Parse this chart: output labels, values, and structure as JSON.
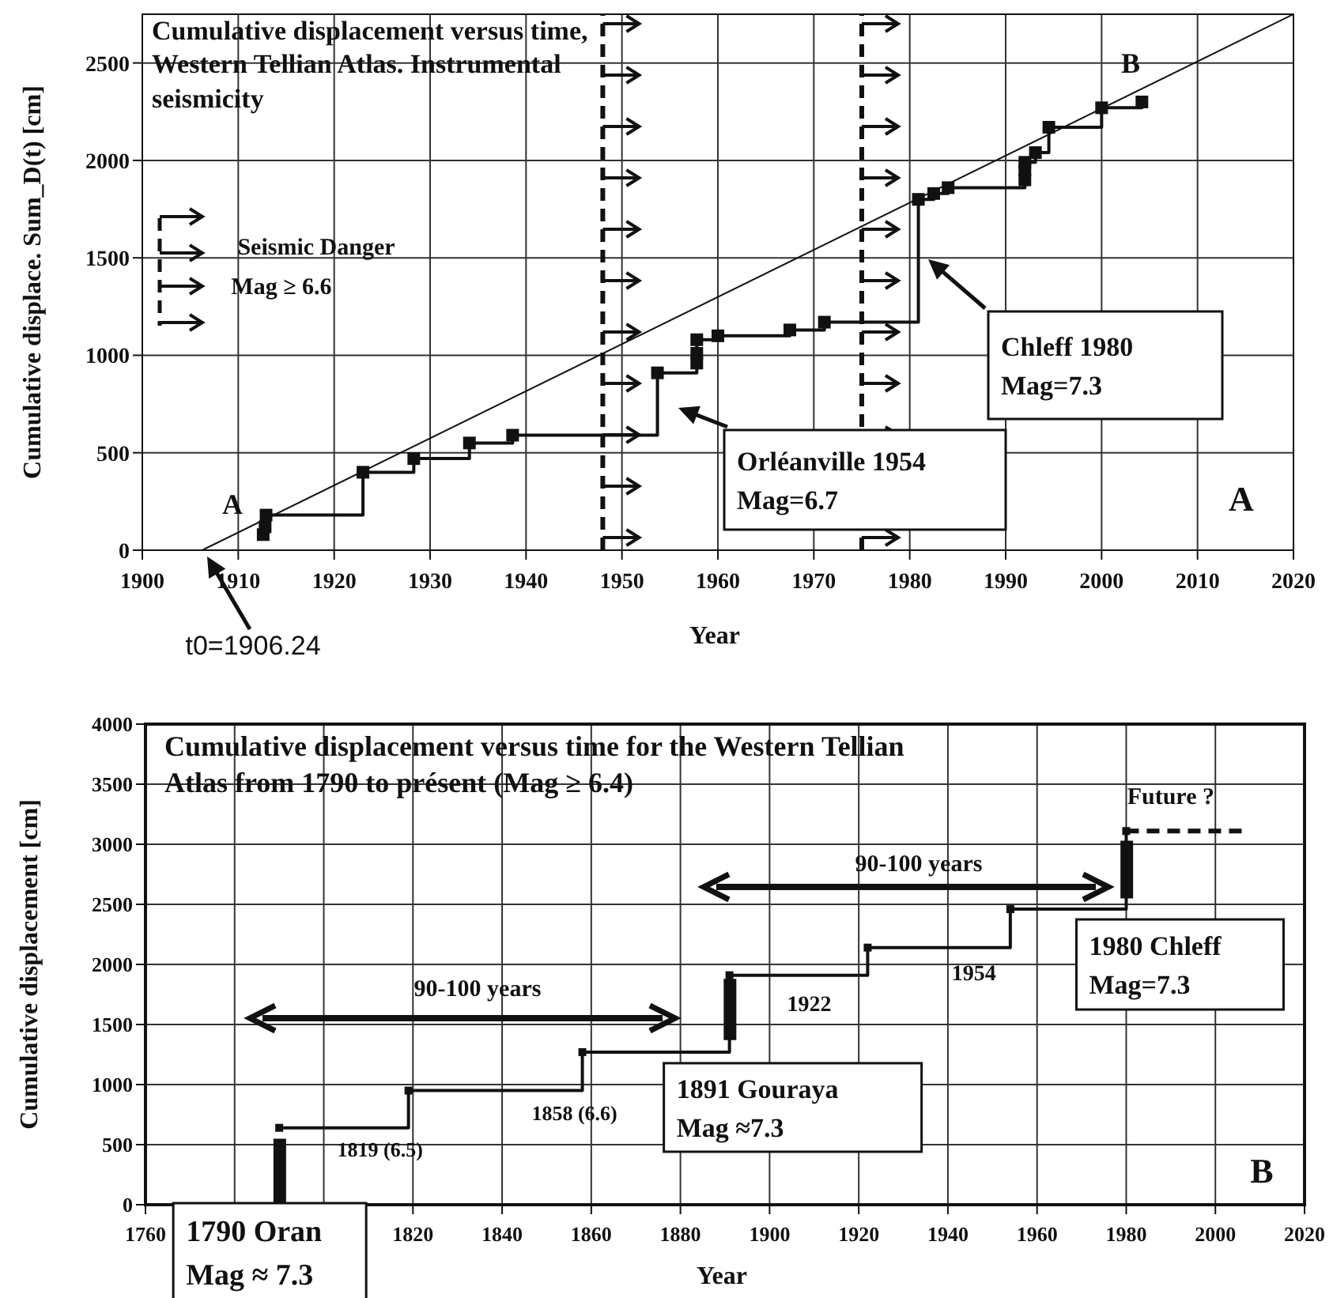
{
  "chart_data": [
    {
      "type": "line",
      "title": "Cumulative displacement versus time, Western Tellian Atlas. Instrumental seismicity",
      "xlabel": "Year",
      "ylabel": "Cumulative displace. Sum_D(t) [cm]",
      "xlim": [
        1900,
        2020
      ],
      "xticks": [
        1900,
        1910,
        1920,
        1930,
        1940,
        1950,
        1960,
        1970,
        1980,
        1990,
        2000,
        2010,
        2020
      ],
      "ylim": [
        0,
        2750
      ],
      "yticks": [
        0,
        500,
        1000,
        1500,
        2000,
        2500
      ],
      "grid": true,
      "series": [
        {
          "type": "step",
          "color": "#111111",
          "marker": "square",
          "x": [
            1912.6,
            1912.8,
            1912.9,
            1923,
            1928.3,
            1934.1,
            1938.6,
            1953.7,
            1957.8,
            1957.8,
            1957.8,
            1960,
            1967.5,
            1971.1,
            1980.9,
            1982.5,
            1984,
            1992,
            1992,
            1992,
            1993.1,
            1994.5,
            2000,
            2004.2
          ],
          "values": [
            80,
            120,
            180,
            400,
            470,
            550,
            590,
            910,
            960,
            1010,
            1080,
            1100,
            1130,
            1170,
            1800,
            1830,
            1860,
            1900,
            1950,
            1990,
            2040,
            2170,
            2270,
            2300
          ]
        },
        {
          "type": "line",
          "color": "#111111",
          "marker": "none",
          "x": [
            1906.24,
            2020
          ],
          "values": [
            0,
            2750
          ]
        }
      ],
      "ref_lines": [
        {
          "axis": "x",
          "value": 1948,
          "line_style": "dashed",
          "color": "#111111"
        },
        {
          "axis": "x",
          "value": 1975,
          "line_style": "dashed",
          "color": "#111111"
        }
      ],
      "annotations": [
        "A",
        "B",
        "t0=1906.24",
        "Orléanville 1954\nMag=6.7",
        "Chleff 1980\nMag=7.3",
        "A",
        "Seismic Danger",
        "Mag ≥ 6.6"
      ]
    },
    {
      "type": "line",
      "title": "Cumulative displacement versus time for the Western Tellian Atlas from 1790 to présent (Mag ≥ 6.4)",
      "xlabel": "Year",
      "ylabel": "Cumulative displacement  [cm]",
      "xlim": [
        1760,
        2020
      ],
      "xticks": [
        1760,
        {
          "value": 1780,
          "label": null
        },
        {
          "value": 1800,
          "label": null
        },
        1820,
        1840,
        1860,
        1880,
        1900,
        1920,
        1940,
        1960,
        1980,
        2000,
        2020
      ],
      "ylim": [
        0,
        4000
      ],
      "yticks": [
        0,
        500,
        1000,
        1500,
        2000,
        2500,
        3000,
        3500,
        4000
      ],
      "grid": true,
      "series": [
        {
          "type": "step",
          "color": "#111111",
          "marker": "square",
          "x": [
            1790,
            1819,
            1858,
            1891,
            1922,
            1954,
            1980
          ],
          "values": [
            640,
            950,
            1270,
            1910,
            2140,
            2460,
            3110
          ]
        },
        {
          "type": "bar",
          "color": "#111111",
          "x": [
            1790,
            1891,
            1980
          ],
          "base": [
            0,
            1370,
            2550
          ],
          "values": [
            550,
            510,
            480
          ]
        },
        {
          "type": "line",
          "color": "#111111",
          "marker": "none",
          "line_style": "dashed",
          "x": [
            1980,
            2007
          ],
          "values": [
            3110,
            3110
          ]
        }
      ],
      "annotations": [
        "90-100 years",
        "90-100 years",
        {
          "text": "1819 (6.5)",
          "x": 1819,
          "y": 951
        },
        {
          "text": "1858 (6.6)",
          "x": 1858,
          "y": 1270
        },
        {
          "text": "1922",
          "x": 1922,
          "y": 2140
        },
        {
          "text": "1954",
          "x": 1954,
          "y": 2460
        },
        {
          "text": "1790 Oran\nMag ≈ 7.3",
          "x": 1790,
          "y": 0
        },
        {
          "text": "1891 Gouraya\nMag ≈7.3",
          "x": 1891,
          "y": 1270
        },
        {
          "text": "1980 Chleff\nMag=7.3",
          "x": 1980,
          "y": 2460
        },
        {
          "text": "Future ?",
          "x": 1990,
          "y": 3110
        },
        "B"
      ]
    }
  ]
}
